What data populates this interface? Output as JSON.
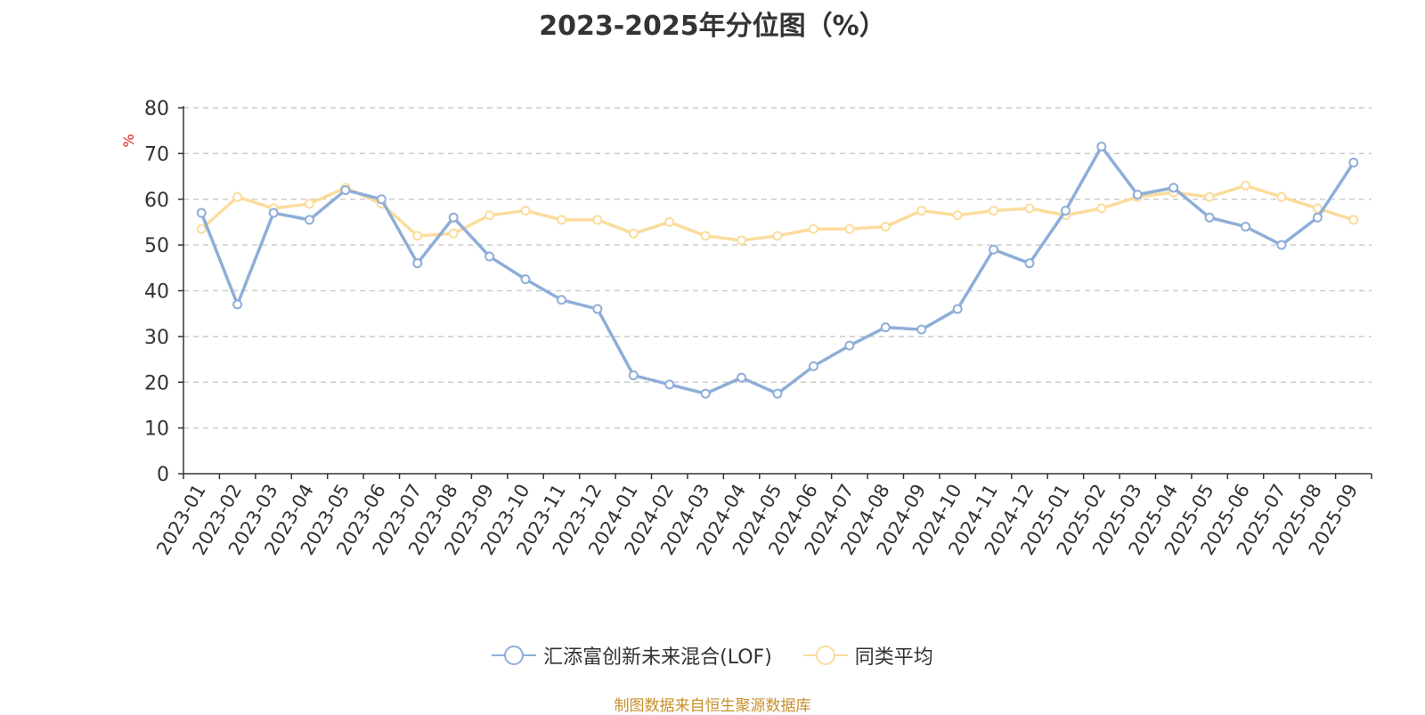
{
  "chart_data": {
    "type": "line",
    "title": "2023-2025年分位图（%）",
    "ylabel": "%",
    "xlabel": "",
    "ylim": [
      0,
      80
    ],
    "yticks": [
      0,
      10,
      20,
      30,
      40,
      50,
      60,
      70,
      80
    ],
    "categories": [
      "2023-01",
      "2023-02",
      "2023-03",
      "2023-04",
      "2023-05",
      "2023-06",
      "2023-07",
      "2023-08",
      "2023-09",
      "2023-10",
      "2023-11",
      "2023-12",
      "2024-01",
      "2024-02",
      "2024-03",
      "2024-04",
      "2024-05",
      "2024-06",
      "2024-07",
      "2024-08",
      "2024-09",
      "2024-10",
      "2024-11",
      "2024-12",
      "2025-01",
      "2025-02",
      "2025-03",
      "2025-04",
      "2025-05",
      "2025-06",
      "2025-07",
      "2025-08",
      "2025-09"
    ],
    "series": [
      {
        "name": "汇添富创新未来混合(LOF)",
        "color": "#8eaed8",
        "values": [
          57,
          37,
          57,
          55.5,
          62,
          60,
          46,
          56,
          47.5,
          42.5,
          38,
          36,
          21.5,
          19.5,
          17.5,
          21,
          17.5,
          23.5,
          28,
          32,
          31.5,
          36,
          49,
          46,
          57.5,
          71.5,
          61,
          62.5,
          56,
          54,
          50,
          56,
          68
        ]
      },
      {
        "name": "同类平均",
        "color": "#fbdc9c",
        "values": [
          53.5,
          60.5,
          58,
          59,
          62.5,
          59,
          52,
          52.5,
          56.5,
          57.5,
          55.5,
          55.5,
          52.5,
          55,
          52,
          51,
          52,
          53.5,
          53.5,
          54,
          57.5,
          56.5,
          57.5,
          58,
          56.5,
          58,
          60.5,
          61.5,
          60.5,
          63,
          60.5,
          58,
          55.5
        ]
      }
    ],
    "grid": true,
    "legend_position": "bottom"
  },
  "source_note": "制图数据来自恒生聚源数据库"
}
